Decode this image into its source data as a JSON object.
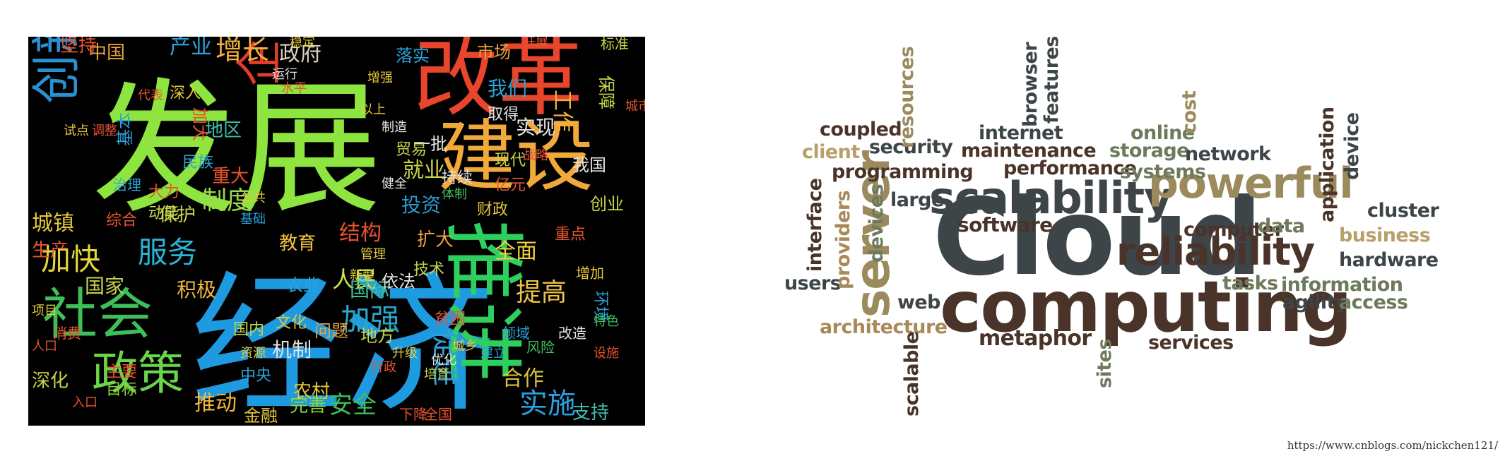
{
  "chinese_cloud": {
    "words": [
      {
        "text": "发展",
        "color": "#8ee53f"
      },
      {
        "text": "经济",
        "color": "#1e9be0"
      },
      {
        "text": "改革",
        "color": "#e8452c"
      },
      {
        "text": "建设",
        "color": "#f2a93b"
      },
      {
        "text": "推进",
        "color": "#2ecf5f"
      },
      {
        "text": "社会",
        "color": "#3fbf5a"
      },
      {
        "text": "创新",
        "color": "#2b8fd0"
      },
      {
        "text": "加快",
        "color": "#e3d63b"
      },
      {
        "text": "服务",
        "color": "#2ab4d8"
      },
      {
        "text": "政策",
        "color": "#6ad44a"
      },
      {
        "text": "企业",
        "color": "#e33c2b"
      },
      {
        "text": "增长",
        "color": "#f2b23b"
      },
      {
        "text": "政府",
        "color": "#d9d2c0"
      },
      {
        "text": "制度",
        "color": "#9bd94a"
      },
      {
        "text": "结构",
        "color": "#e8542e"
      },
      {
        "text": "加强",
        "color": "#2aa4c8"
      },
      {
        "text": "人民",
        "color": "#cfe04a"
      },
      {
        "text": "提高",
        "color": "#f0c43f"
      },
      {
        "text": "全面",
        "color": "#f2d23b"
      },
      {
        "text": "实施",
        "color": "#2aa0e0"
      },
      {
        "text": "合作",
        "color": "#d9c23a"
      },
      {
        "text": "推动",
        "color": "#f2b83b"
      },
      {
        "text": "安全",
        "color": "#3fbf5a"
      },
      {
        "text": "完善",
        "color": "#8ad43a"
      },
      {
        "text": "市场",
        "color": "#e8a13b"
      },
      {
        "text": "我们",
        "color": "#2aa4d8"
      },
      {
        "text": "实现",
        "color": "#e3e3e3"
      },
      {
        "text": "工作",
        "color": "#f2b23b"
      },
      {
        "text": "国际",
        "color": "#3fbf9a"
      },
      {
        "text": "就业",
        "color": "#c8d44a"
      },
      {
        "text": "投资",
        "color": "#2a9bd8"
      },
      {
        "text": "地区",
        "color": "#3fbfb0"
      },
      {
        "text": "城镇",
        "color": "#e3c83b"
      },
      {
        "text": "生产",
        "color": "#e8542e"
      },
      {
        "text": "国家",
        "color": "#c8d44a"
      },
      {
        "text": "积极",
        "color": "#f2b83b"
      },
      {
        "text": "促进",
        "color": "#2aa4d8"
      },
      {
        "text": "支持",
        "color": "#3fbfb0"
      },
      {
        "text": "机制",
        "color": "#e3e3e3"
      },
      {
        "text": "教育",
        "color": "#f0c43f"
      },
      {
        "text": "扩大",
        "color": "#e8a13b"
      },
      {
        "text": "重大",
        "color": "#e8542e"
      },
      {
        "text": "产业",
        "color": "#2aa4d8"
      },
      {
        "text": "中国",
        "color": "#e8a13b"
      },
      {
        "text": "坚持",
        "color": "#e8542e"
      },
      {
        "text": "深化",
        "color": "#c8d44a"
      },
      {
        "text": "主要",
        "color": "#e8542e"
      },
      {
        "text": "目标",
        "color": "#8ad43a"
      },
      {
        "text": "保护",
        "color": "#c8d44a"
      },
      {
        "text": "农村",
        "color": "#e3c83b"
      },
      {
        "text": "金融",
        "color": "#e3c83b"
      },
      {
        "text": "问题",
        "color": "#e8a13b"
      },
      {
        "text": "农业",
        "color": "#2aa4d8"
      },
      {
        "text": "地方",
        "color": "#c8d44a"
      },
      {
        "text": "依法",
        "color": "#e3e3e3"
      },
      {
        "text": "基本",
        "color": "#2aa4d8"
      },
      {
        "text": "加大",
        "color": "#e8542e"
      },
      {
        "text": "一批",
        "color": "#e3e3e3"
      },
      {
        "text": "落实",
        "color": "#2aa4d8"
      },
      {
        "text": "保障",
        "color": "#c8d44a"
      },
      {
        "text": "取得",
        "color": "#e3e3e3"
      },
      {
        "text": "现代",
        "color": "#c8d44a"
      },
      {
        "text": "亿元",
        "color": "#e8542e"
      },
      {
        "text": "财政",
        "color": "#e3c83b"
      },
      {
        "text": "创业",
        "color": "#c8d44a"
      },
      {
        "text": "我国",
        "color": "#e3e3e3"
      },
      {
        "text": "重点",
        "color": "#e8542e"
      },
      {
        "text": "大力",
        "color": "#e8542e"
      },
      {
        "text": "动能",
        "color": "#c8d44a"
      },
      {
        "text": "民族",
        "color": "#2aa4d8"
      },
      {
        "text": "国内",
        "color": "#c8d44a"
      },
      {
        "text": "中央",
        "color": "#2aa4d8"
      },
      {
        "text": "环境",
        "color": "#2aa4d8"
      },
      {
        "text": "持续",
        "color": "#e3e3e3"
      },
      {
        "text": "贸易",
        "color": "#c8d44a"
      },
      {
        "text": "深入",
        "color": "#e3c83b"
      },
      {
        "text": "综合",
        "color": "#e8542e"
      },
      {
        "text": "技术",
        "color": "#c8d44a"
      },
      {
        "text": "贫困",
        "color": "#e8542e"
      },
      {
        "text": "文化",
        "color": "#e3c83b"
      },
      {
        "text": "风险",
        "color": "#3fbf5a"
      },
      {
        "text": "改造",
        "color": "#e3e3e3"
      },
      {
        "text": "领域",
        "color": "#2aa4d8"
      },
      {
        "text": "全国",
        "color": "#e8542e"
      },
      {
        "text": "下降",
        "color": "#e8542e"
      },
      {
        "text": "增加",
        "color": "#e3c83b"
      },
      {
        "text": "特色",
        "color": "#3fbf5a"
      },
      {
        "text": "试点",
        "color": "#e3c83b"
      },
      {
        "text": "调整",
        "color": "#e8542e"
      },
      {
        "text": "治理",
        "color": "#2aa4d8"
      },
      {
        "text": "新型",
        "color": "#e3c83b"
      },
      {
        "text": "消费",
        "color": "#e8542e"
      },
      {
        "text": "标准",
        "color": "#c8d44a"
      },
      {
        "text": "体制",
        "color": "#3fbf5a"
      },
      {
        "text": "管理",
        "color": "#e3c83b"
      },
      {
        "text": "制造",
        "color": "#e3e3e3"
      },
      {
        "text": "公共",
        "color": "#e3c83b"
      },
      {
        "text": "资源",
        "color": "#e3c83b"
      },
      {
        "text": "建立",
        "color": "#2aa4d8"
      },
      {
        "text": "健全",
        "color": "#e3e3e3"
      },
      {
        "text": "稳定",
        "color": "#e3c83b"
      },
      {
        "text": "开展",
        "color": "#e8542e"
      },
      {
        "text": "人口",
        "color": "#e8542e"
      },
      {
        "text": "运行",
        "color": "#e3e3e3"
      },
      {
        "text": "水平",
        "color": "#e8542e"
      },
      {
        "text": "战略",
        "color": "#e8542e"
      },
      {
        "text": "以上",
        "color": "#e3c83b"
      },
      {
        "text": "代表",
        "color": "#e8542e"
      },
      {
        "text": "增强",
        "color": "#e3c83b"
      },
      {
        "text": "城乡",
        "color": "#e3c83b"
      },
      {
        "text": "培育",
        "color": "#c8d44a"
      },
      {
        "text": "优化",
        "color": "#e3e3e3"
      },
      {
        "text": "行政",
        "color": "#e8542e"
      },
      {
        "text": "项目",
        "color": "#e3c83b"
      },
      {
        "text": "升级",
        "color": "#e3c83b"
      },
      {
        "text": "入口",
        "color": "#e8542e"
      },
      {
        "text": "基础",
        "color": "#2aa4d8"
      },
      {
        "text": "设施",
        "color": "#e8542e"
      },
      {
        "text": "城市",
        "color": "#e8542e"
      }
    ]
  },
  "english_cloud": {
    "words": [
      {
        "text": "Cloud",
        "color": "#3d4548"
      },
      {
        "text": "computing",
        "color": "#4a3328"
      },
      {
        "text": "scalability",
        "color": "#3d4548"
      },
      {
        "text": "powerful",
        "color": "#9a8a5c"
      },
      {
        "text": "reliability",
        "color": "#4a3328"
      },
      {
        "text": "server",
        "color": "#9a8a5c"
      },
      {
        "text": "software",
        "color": "#4a3328"
      },
      {
        "text": "metaphor",
        "color": "#4a3328"
      },
      {
        "text": "architecture",
        "color": "#a8895a"
      },
      {
        "text": "programming",
        "color": "#4a3328"
      },
      {
        "text": "performance",
        "color": "#4a3328"
      },
      {
        "text": "maintenance",
        "color": "#4a3328"
      },
      {
        "text": "storage",
        "color": "#6d7a5c"
      },
      {
        "text": "network",
        "color": "#3d4548"
      },
      {
        "text": "systems",
        "color": "#6d7a5c"
      },
      {
        "text": "online",
        "color": "#6d7a5c"
      },
      {
        "text": "internet",
        "color": "#3d4548"
      },
      {
        "text": "security",
        "color": "#3d4548"
      },
      {
        "text": "coupled",
        "color": "#4a3328"
      },
      {
        "text": "client",
        "color": "#b8a06a"
      },
      {
        "text": "computer",
        "color": "#4a3328"
      },
      {
        "text": "data",
        "color": "#6d7a5c"
      },
      {
        "text": "business",
        "color": "#b8a06a"
      },
      {
        "text": "cluster",
        "color": "#3d4548"
      },
      {
        "text": "hardware",
        "color": "#3d4548"
      },
      {
        "text": "information",
        "color": "#6d7a5c"
      },
      {
        "text": "tasks",
        "color": "#6d7a5c"
      },
      {
        "text": "agility",
        "color": "#3d4548"
      },
      {
        "text": "access",
        "color": "#6d7a5c"
      },
      {
        "text": "services",
        "color": "#4a3328"
      },
      {
        "text": "web",
        "color": "#3d4548"
      },
      {
        "text": "users",
        "color": "#3d4548"
      },
      {
        "text": "large",
        "color": "#3d4548"
      },
      {
        "text": "interface",
        "color": "#4a3328"
      },
      {
        "text": "providers",
        "color": "#a8895a"
      },
      {
        "text": "devices",
        "color": "#6d7a5c"
      },
      {
        "text": "resources",
        "color": "#9a8a5c"
      },
      {
        "text": "browser",
        "color": "#3d4548"
      },
      {
        "text": "features",
        "color": "#3d4548"
      },
      {
        "text": "cost",
        "color": "#9a8a5c"
      },
      {
        "text": "application",
        "color": "#4a3328"
      },
      {
        "text": "device",
        "color": "#3d4548"
      },
      {
        "text": "scalable",
        "color": "#4a3328"
      },
      {
        "text": "sites",
        "color": "#6d7a5c"
      }
    ]
  },
  "source_url": "https://www.cnblogs.com/nickchen121/"
}
